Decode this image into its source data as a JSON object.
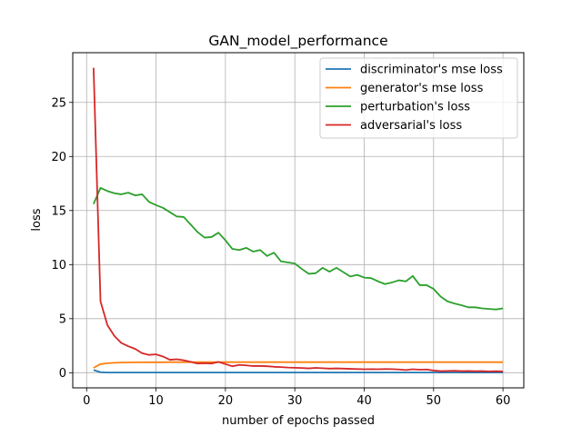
{
  "chart_data": {
    "type": "line",
    "title": "GAN_model_performance",
    "xlabel": "number of epochs passed",
    "ylabel": "loss",
    "xlim": [
      -2.0,
      63.0
    ],
    "ylim": [
      -1.4,
      29.6
    ],
    "xticks": [
      0,
      10,
      20,
      30,
      40,
      50,
      60
    ],
    "yticks": [
      0,
      5,
      10,
      15,
      20,
      25
    ],
    "grid": true,
    "legend_position": "upper right",
    "x": [
      1,
      2,
      3,
      4,
      5,
      6,
      7,
      8,
      9,
      10,
      11,
      12,
      13,
      14,
      15,
      16,
      17,
      18,
      19,
      20,
      21,
      22,
      23,
      24,
      25,
      26,
      27,
      28,
      29,
      30,
      31,
      32,
      33,
      34,
      35,
      36,
      37,
      38,
      39,
      40,
      41,
      42,
      43,
      44,
      45,
      46,
      47,
      48,
      49,
      50,
      51,
      52,
      53,
      54,
      55,
      56,
      57,
      58,
      59,
      60
    ],
    "series": [
      {
        "name": "discriminator's mse loss",
        "color": "#1f77b4",
        "values": [
          0.25,
          0.05,
          0.02,
          0.02,
          0.02,
          0.02,
          0.02,
          0.02,
          0.02,
          0.02,
          0.02,
          0.02,
          0.02,
          0.02,
          0.02,
          0.02,
          0.02,
          0.02,
          0.02,
          0.02,
          0.02,
          0.02,
          0.02,
          0.02,
          0.02,
          0.02,
          0.02,
          0.02,
          0.02,
          0.02,
          0.02,
          0.02,
          0.02,
          0.02,
          0.02,
          0.02,
          0.02,
          0.02,
          0.02,
          0.02,
          0.02,
          0.02,
          0.02,
          0.02,
          0.02,
          0.02,
          0.02,
          0.02,
          0.02,
          0.02,
          0.02,
          0.02,
          0.02,
          0.02,
          0.02,
          0.02,
          0.02,
          0.02,
          0.02,
          0.02
        ]
      },
      {
        "name": "generator's mse loss",
        "color": "#ff7f0e",
        "values": [
          0.45,
          0.8,
          0.88,
          0.92,
          0.94,
          0.95,
          0.96,
          0.96,
          0.97,
          0.97,
          0.97,
          0.98,
          0.98,
          0.98,
          0.98,
          0.98,
          0.98,
          0.98,
          0.98,
          0.98,
          0.98,
          0.98,
          0.98,
          0.98,
          0.98,
          0.98,
          0.98,
          0.98,
          0.98,
          0.98,
          0.98,
          0.98,
          0.98,
          0.98,
          0.98,
          0.98,
          0.98,
          0.98,
          0.98,
          0.98,
          0.98,
          0.98,
          0.98,
          0.98,
          0.98,
          0.98,
          0.98,
          0.98,
          0.98,
          0.98,
          0.98,
          0.98,
          0.98,
          0.98,
          0.98,
          0.98,
          0.98,
          0.98,
          0.98,
          0.98
        ]
      },
      {
        "name": "perturbation's loss",
        "color": "#2ca02c",
        "values": [
          15.6,
          17.1,
          16.8,
          16.6,
          16.5,
          16.65,
          16.4,
          16.5,
          15.8,
          15.5,
          15.25,
          14.85,
          14.45,
          14.4,
          13.7,
          13.0,
          12.5,
          12.55,
          12.95,
          12.25,
          11.45,
          11.35,
          11.55,
          11.2,
          11.35,
          10.8,
          11.1,
          10.3,
          10.2,
          10.1,
          9.6,
          9.15,
          9.2,
          9.7,
          9.35,
          9.7,
          9.3,
          8.9,
          9.05,
          8.8,
          8.75,
          8.45,
          8.2,
          8.35,
          8.55,
          8.45,
          8.95,
          8.1,
          8.1,
          7.75,
          7.05,
          6.6,
          6.4,
          6.25,
          6.05,
          6.05,
          5.95,
          5.9,
          5.85,
          5.95
        ]
      },
      {
        "name": "adversarial's loss",
        "color": "#d62728",
        "values": [
          28.2,
          6.6,
          4.4,
          3.4,
          2.75,
          2.45,
          2.2,
          1.8,
          1.65,
          1.7,
          1.5,
          1.2,
          1.25,
          1.15,
          1.0,
          0.85,
          0.88,
          0.85,
          1.0,
          0.8,
          0.6,
          0.72,
          0.68,
          0.62,
          0.62,
          0.6,
          0.55,
          0.52,
          0.48,
          0.46,
          0.44,
          0.4,
          0.45,
          0.42,
          0.38,
          0.4,
          0.38,
          0.36,
          0.34,
          0.32,
          0.33,
          0.32,
          0.34,
          0.33,
          0.3,
          0.25,
          0.32,
          0.28,
          0.3,
          0.2,
          0.15,
          0.16,
          0.18,
          0.15,
          0.16,
          0.14,
          0.15,
          0.12,
          0.14,
          0.12
        ]
      }
    ]
  }
}
